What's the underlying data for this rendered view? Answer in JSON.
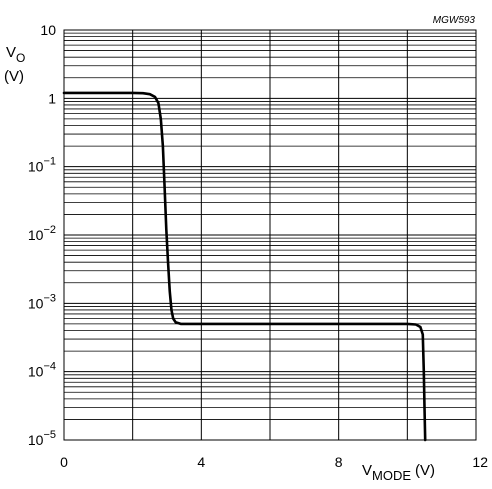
{
  "chart_data": {
    "type": "line",
    "figure_id": "MGW593",
    "title": "",
    "xlabel": {
      "main": "V",
      "sub": "MODE",
      "unit": "(V)"
    },
    "ylabel": {
      "main": "V",
      "sub": "O",
      "unit": "(V)"
    },
    "xlim": [
      0,
      12
    ],
    "ylim": [
      1e-05,
      10
    ],
    "yscale": "log",
    "grid": true,
    "x_ticks": [
      {
        "value": 0,
        "label": "0"
      },
      {
        "value": 4,
        "label": "4"
      },
      {
        "value": 8,
        "label": "8"
      },
      {
        "value": 12,
        "label": "12"
      }
    ],
    "y_ticks": [
      {
        "value": 10,
        "base": "10",
        "exp": ""
      },
      {
        "value": 1,
        "base": "1",
        "exp": ""
      },
      {
        "value": 0.1,
        "base": "10",
        "exp": "−1"
      },
      {
        "value": 0.01,
        "base": "10",
        "exp": "−2"
      },
      {
        "value": 0.001,
        "base": "10",
        "exp": "−3"
      },
      {
        "value": 0.0001,
        "base": "10",
        "exp": "−4"
      },
      {
        "value": 1e-05,
        "base": "10",
        "exp": "−5"
      }
    ],
    "series": [
      {
        "x": [
          0,
          2.0,
          2.3,
          2.5,
          2.65,
          2.75,
          2.82,
          2.88,
          2.93,
          2.98,
          3.03,
          3.08,
          3.13,
          3.18,
          3.25,
          3.4,
          3.7,
          6.0,
          9.5,
          10.0,
          10.25,
          10.38,
          10.45,
          10.48,
          10.5,
          10.52
        ],
        "y": [
          1.2,
          1.2,
          1.19,
          1.15,
          1.05,
          0.85,
          0.5,
          0.2,
          0.05,
          0.012,
          0.004,
          0.0015,
          0.0008,
          0.0006,
          0.00053,
          0.0005,
          0.0005,
          0.0005,
          0.0005,
          0.0005,
          0.00049,
          0.00045,
          0.00035,
          0.0001,
          3e-05,
          1e-05
        ]
      }
    ]
  }
}
